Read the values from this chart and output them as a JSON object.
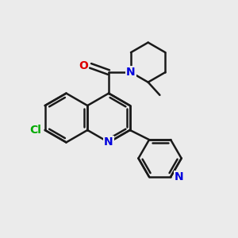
{
  "bg_color": "#ebebeb",
  "bond_color": "#1a1a1a",
  "bond_width": 1.8,
  "atom_colors": {
    "N": "#0000dd",
    "O": "#dd0000",
    "Cl": "#00aa00",
    "C": "#1a1a1a"
  },
  "font_size": 10,
  "fig_size": [
    3.0,
    3.0
  ],
  "dpi": 100
}
